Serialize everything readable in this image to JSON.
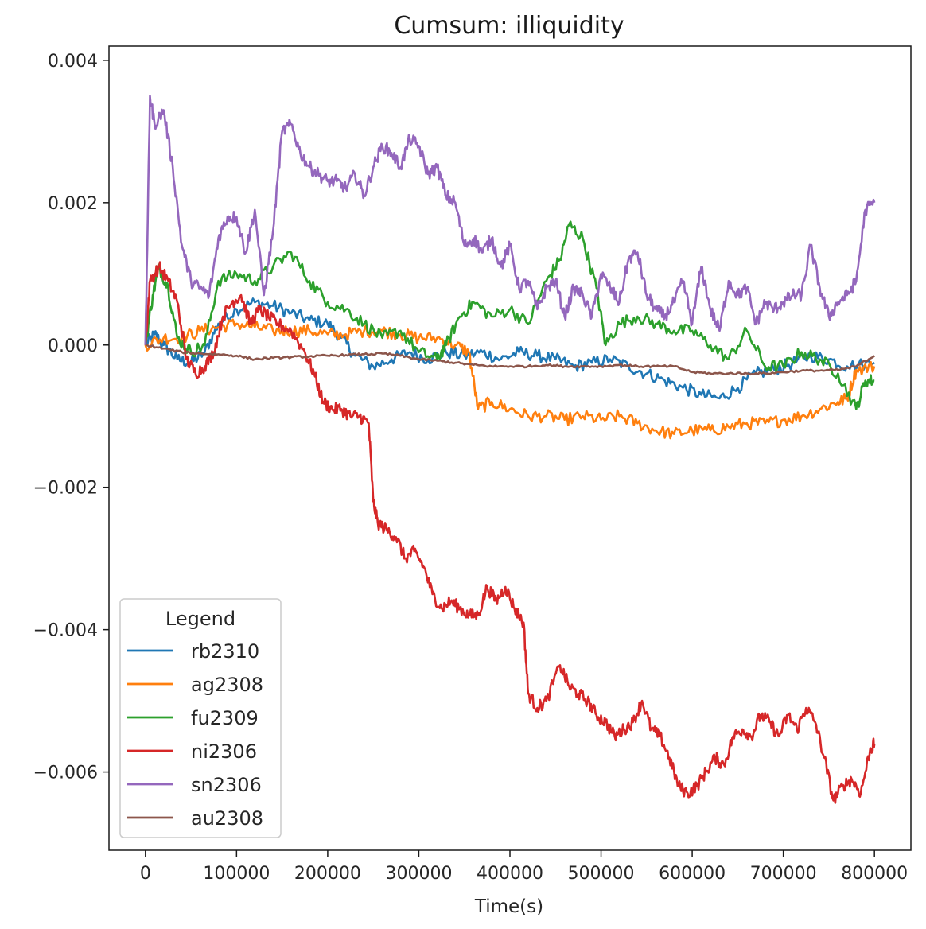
{
  "chart_data": {
    "type": "line",
    "title": "Cumsum: illiquidity",
    "xlabel": "Time(s)",
    "ylabel": "",
    "xlim": [
      -40000,
      840000
    ],
    "ylim": [
      -0.0071,
      0.0042
    ],
    "xticks": [
      0,
      100000,
      200000,
      300000,
      400000,
      500000,
      600000,
      700000,
      800000
    ],
    "xtick_labels": [
      "0",
      "100000",
      "200000",
      "300000",
      "400000",
      "500000",
      "600000",
      "700000",
      "800000"
    ],
    "yticks": [
      0.004,
      0.002,
      0.0,
      -0.002,
      -0.004,
      -0.006
    ],
    "ytick_labels": [
      "0.004",
      "0.002",
      "0.000",
      "−0.002",
      "−0.004",
      "−0.006"
    ],
    "legend": {
      "title": "Legend",
      "position": "lower-left"
    },
    "series": [
      {
        "name": "rb2310",
        "color": "#1f77b4",
        "x": [
          0,
          10000,
          20000,
          35000,
          50000,
          65000,
          80000,
          100000,
          120000,
          140000,
          160000,
          180000,
          200000,
          215000,
          230000,
          250000,
          270000,
          290000,
          310000,
          330000,
          350000,
          370000,
          390000,
          410000,
          430000,
          450000,
          470000,
          490000,
          510000,
          530000,
          550000,
          570000,
          590000,
          610000,
          630000,
          650000,
          670000,
          690000,
          710000,
          730000,
          750000,
          770000,
          800000
        ],
        "y": [
          0.0,
          0.00015,
          0.0,
          -0.0002,
          -0.00025,
          -0.0001,
          0.0003,
          0.0005,
          0.0006,
          0.00055,
          0.00045,
          0.00035,
          0.0003,
          0.0001,
          -0.00015,
          -0.0003,
          -0.0002,
          -0.0001,
          -0.0002,
          -0.0001,
          -0.00015,
          -0.0001,
          -0.0002,
          -0.0001,
          -0.00015,
          -0.0002,
          -0.0003,
          -0.00025,
          -0.0002,
          -0.0003,
          -0.0004,
          -0.0005,
          -0.0006,
          -0.0007,
          -0.00075,
          -0.0006,
          -0.0004,
          -0.00035,
          -0.00025,
          -0.00015,
          -0.0002,
          -0.0003,
          -0.00025
        ]
      },
      {
        "name": "ag2308",
        "color": "#ff7f0e",
        "x": [
          0,
          20000,
          40000,
          60000,
          80000,
          100000,
          120000,
          140000,
          160000,
          180000,
          200000,
          220000,
          240000,
          260000,
          280000,
          300000,
          320000,
          340000,
          355000,
          365000,
          380000,
          400000,
          420000,
          440000,
          460000,
          480000,
          500000,
          520000,
          540000,
          560000,
          580000,
          600000,
          620000,
          640000,
          660000,
          680000,
          700000,
          720000,
          740000,
          760000,
          770000,
          780000,
          800000
        ],
        "y": [
          0.0,
          0.0001,
          0.0001,
          0.0002,
          0.00025,
          0.0003,
          0.00025,
          0.0002,
          0.0002,
          0.0002,
          0.00015,
          0.00015,
          0.0002,
          0.0002,
          0.00015,
          0.0001,
          0.0001,
          0.0,
          -0.0001,
          -0.0009,
          -0.0008,
          -0.0009,
          -0.001,
          -0.001,
          -0.00105,
          -0.001,
          -0.00105,
          -0.001,
          -0.0011,
          -0.0012,
          -0.00125,
          -0.0012,
          -0.0012,
          -0.00115,
          -0.0011,
          -0.0011,
          -0.00105,
          -0.001,
          -0.0009,
          -0.0008,
          -0.00075,
          -0.00035,
          -0.0003
        ]
      },
      {
        "name": "fu2309",
        "color": "#2ca02c",
        "x": [
          0,
          8000,
          15000,
          25000,
          35000,
          50000,
          65000,
          80000,
          100000,
          120000,
          140000,
          160000,
          180000,
          200000,
          220000,
          240000,
          260000,
          280000,
          300000,
          320000,
          330000,
          345000,
          360000,
          380000,
          400000,
          420000,
          440000,
          455000,
          465000,
          480000,
          495000,
          505000,
          520000,
          540000,
          560000,
          580000,
          600000,
          620000,
          640000,
          660000,
          680000,
          700000,
          720000,
          740000,
          760000,
          780000,
          790000,
          800000
        ],
        "y": [
          0.0,
          0.0007,
          0.0011,
          0.0008,
          0.0001,
          -0.0001,
          0.0,
          0.0009,
          0.001,
          0.0009,
          0.0011,
          0.0013,
          0.0009,
          0.0006,
          0.0005,
          0.0003,
          0.0001,
          0.0002,
          -0.0001,
          -0.0002,
          0.0,
          0.0004,
          0.0006,
          0.0004,
          0.0005,
          0.0003,
          0.0009,
          0.0012,
          0.0017,
          0.0015,
          0.0008,
          0.0,
          0.0003,
          0.0004,
          0.0003,
          0.0002,
          0.0002,
          0.0,
          -0.0002,
          0.0002,
          -0.0003,
          -0.0003,
          -0.0001,
          -0.0002,
          -0.0004,
          -0.0009,
          -0.0005,
          -0.0005
        ]
      },
      {
        "name": "ni2306",
        "color": "#d62728",
        "x": [
          0,
          5000,
          15000,
          25000,
          35000,
          45000,
          55000,
          65000,
          75000,
          85000,
          95000,
          105000,
          115000,
          125000,
          135000,
          145000,
          160000,
          175000,
          185000,
          195000,
          205000,
          215000,
          225000,
          235000,
          245000,
          250000,
          255000,
          265000,
          275000,
          285000,
          295000,
          305000,
          315000,
          325000,
          335000,
          345000,
          355000,
          365000,
          375000,
          385000,
          395000,
          405000,
          415000,
          420000,
          430000,
          440000,
          455000,
          465000,
          475000,
          485000,
          495000,
          505000,
          515000,
          525000,
          535000,
          545000,
          555000,
          565000,
          575000,
          585000,
          595000,
          605000,
          615000,
          625000,
          635000,
          645000,
          655000,
          665000,
          675000,
          685000,
          695000,
          705000,
          715000,
          725000,
          735000,
          745000,
          755000,
          765000,
          775000,
          785000,
          795000,
          800000
        ],
        "y": [
          0.0,
          0.0009,
          0.0011,
          0.0009,
          0.0006,
          -0.0002,
          -0.0004,
          -0.0003,
          -0.0001,
          0.0004,
          0.0006,
          0.0007,
          0.0003,
          0.0005,
          0.0004,
          0.0003,
          0.0002,
          -0.0001,
          -0.0004,
          -0.0008,
          -0.0009,
          -0.0009,
          -0.001,
          -0.001,
          -0.0011,
          -0.0022,
          -0.0025,
          -0.0026,
          -0.0027,
          -0.003,
          -0.0029,
          -0.0031,
          -0.0035,
          -0.0037,
          -0.0036,
          -0.0037,
          -0.0038,
          -0.0038,
          -0.0034,
          -0.0036,
          -0.0034,
          -0.0037,
          -0.0039,
          -0.0049,
          -0.0051,
          -0.005,
          -0.0045,
          -0.0048,
          -0.0049,
          -0.005,
          -0.0052,
          -0.0053,
          -0.0055,
          -0.0054,
          -0.0053,
          -0.005,
          -0.0054,
          -0.0055,
          -0.0058,
          -0.0062,
          -0.0063,
          -0.0062,
          -0.006,
          -0.0058,
          -0.0059,
          -0.0055,
          -0.0054,
          -0.0055,
          -0.0052,
          -0.0053,
          -0.0055,
          -0.0052,
          -0.0054,
          -0.0051,
          -0.0053,
          -0.0058,
          -0.0064,
          -0.0062,
          -0.0061,
          -0.0063,
          -0.0057,
          -0.0056
        ]
      },
      {
        "name": "sn2306",
        "color": "#9467bd",
        "x": [
          0,
          5000,
          10000,
          20000,
          30000,
          40000,
          50000,
          60000,
          70000,
          80000,
          90000,
          100000,
          110000,
          120000,
          130000,
          140000,
          150000,
          160000,
          170000,
          180000,
          190000,
          200000,
          210000,
          220000,
          230000,
          240000,
          250000,
          260000,
          270000,
          280000,
          290000,
          300000,
          310000,
          320000,
          330000,
          340000,
          350000,
          360000,
          370000,
          380000,
          390000,
          400000,
          410000,
          420000,
          430000,
          440000,
          450000,
          460000,
          470000,
          480000,
          490000,
          500000,
          510000,
          520000,
          530000,
          540000,
          550000,
          560000,
          570000,
          580000,
          590000,
          600000,
          610000,
          620000,
          630000,
          640000,
          650000,
          660000,
          670000,
          680000,
          690000,
          700000,
          710000,
          720000,
          730000,
          740000,
          750000,
          760000,
          770000,
          780000,
          790000,
          800000
        ],
        "y": [
          0.0,
          0.0035,
          0.0031,
          0.0033,
          0.0025,
          0.0014,
          0.0009,
          0.0008,
          0.0007,
          0.0015,
          0.0018,
          0.0018,
          0.0013,
          0.0019,
          0.0007,
          0.0016,
          0.003,
          0.0031,
          0.0027,
          0.0025,
          0.0024,
          0.0023,
          0.0023,
          0.0022,
          0.0024,
          0.0021,
          0.0025,
          0.0028,
          0.0027,
          0.0025,
          0.0029,
          0.0028,
          0.0024,
          0.0025,
          0.0021,
          0.002,
          0.0014,
          0.0015,
          0.0013,
          0.0015,
          0.0011,
          0.0014,
          0.0008,
          0.0009,
          0.0005,
          0.0008,
          0.0009,
          0.0004,
          0.0008,
          0.0007,
          0.0004,
          0.001,
          0.0008,
          0.0006,
          0.0012,
          0.0013,
          0.0007,
          0.0005,
          0.0004,
          0.0006,
          0.0009,
          0.0003,
          0.0011,
          0.0005,
          0.0002,
          0.0009,
          0.0007,
          0.0008,
          0.0003,
          0.0006,
          0.0005,
          0.0006,
          0.0007,
          0.0007,
          0.0014,
          0.0008,
          0.0004,
          0.0006,
          0.0007,
          0.0009,
          0.0019,
          0.002
        ]
      },
      {
        "name": "au2308",
        "color": "#8c564b",
        "x": [
          0,
          20000,
          40000,
          60000,
          80000,
          100000,
          120000,
          140000,
          160000,
          180000,
          200000,
          220000,
          240000,
          260000,
          280000,
          300000,
          320000,
          340000,
          360000,
          380000,
          400000,
          420000,
          440000,
          460000,
          480000,
          500000,
          520000,
          540000,
          560000,
          580000,
          600000,
          620000,
          640000,
          660000,
          680000,
          700000,
          720000,
          740000,
          760000,
          780000,
          800000
        ],
        "y": [
          0.0,
          -5e-05,
          -0.0001,
          -0.00012,
          -0.00013,
          -0.00015,
          -0.0002,
          -0.00018,
          -0.00017,
          -0.00016,
          -0.00015,
          -0.00014,
          -0.00013,
          -0.00012,
          -0.00015,
          -0.0002,
          -0.00022,
          -0.00025,
          -0.00028,
          -0.0003,
          -0.0003,
          -0.0003,
          -0.00028,
          -0.0003,
          -0.0003,
          -0.0003,
          -0.00028,
          -0.0003,
          -0.0003,
          -0.0003,
          -0.00038,
          -0.0004,
          -0.0004,
          -0.0004,
          -0.0004,
          -0.00038,
          -0.00036,
          -0.00036,
          -0.00035,
          -0.0003,
          -0.00015
        ]
      }
    ]
  }
}
